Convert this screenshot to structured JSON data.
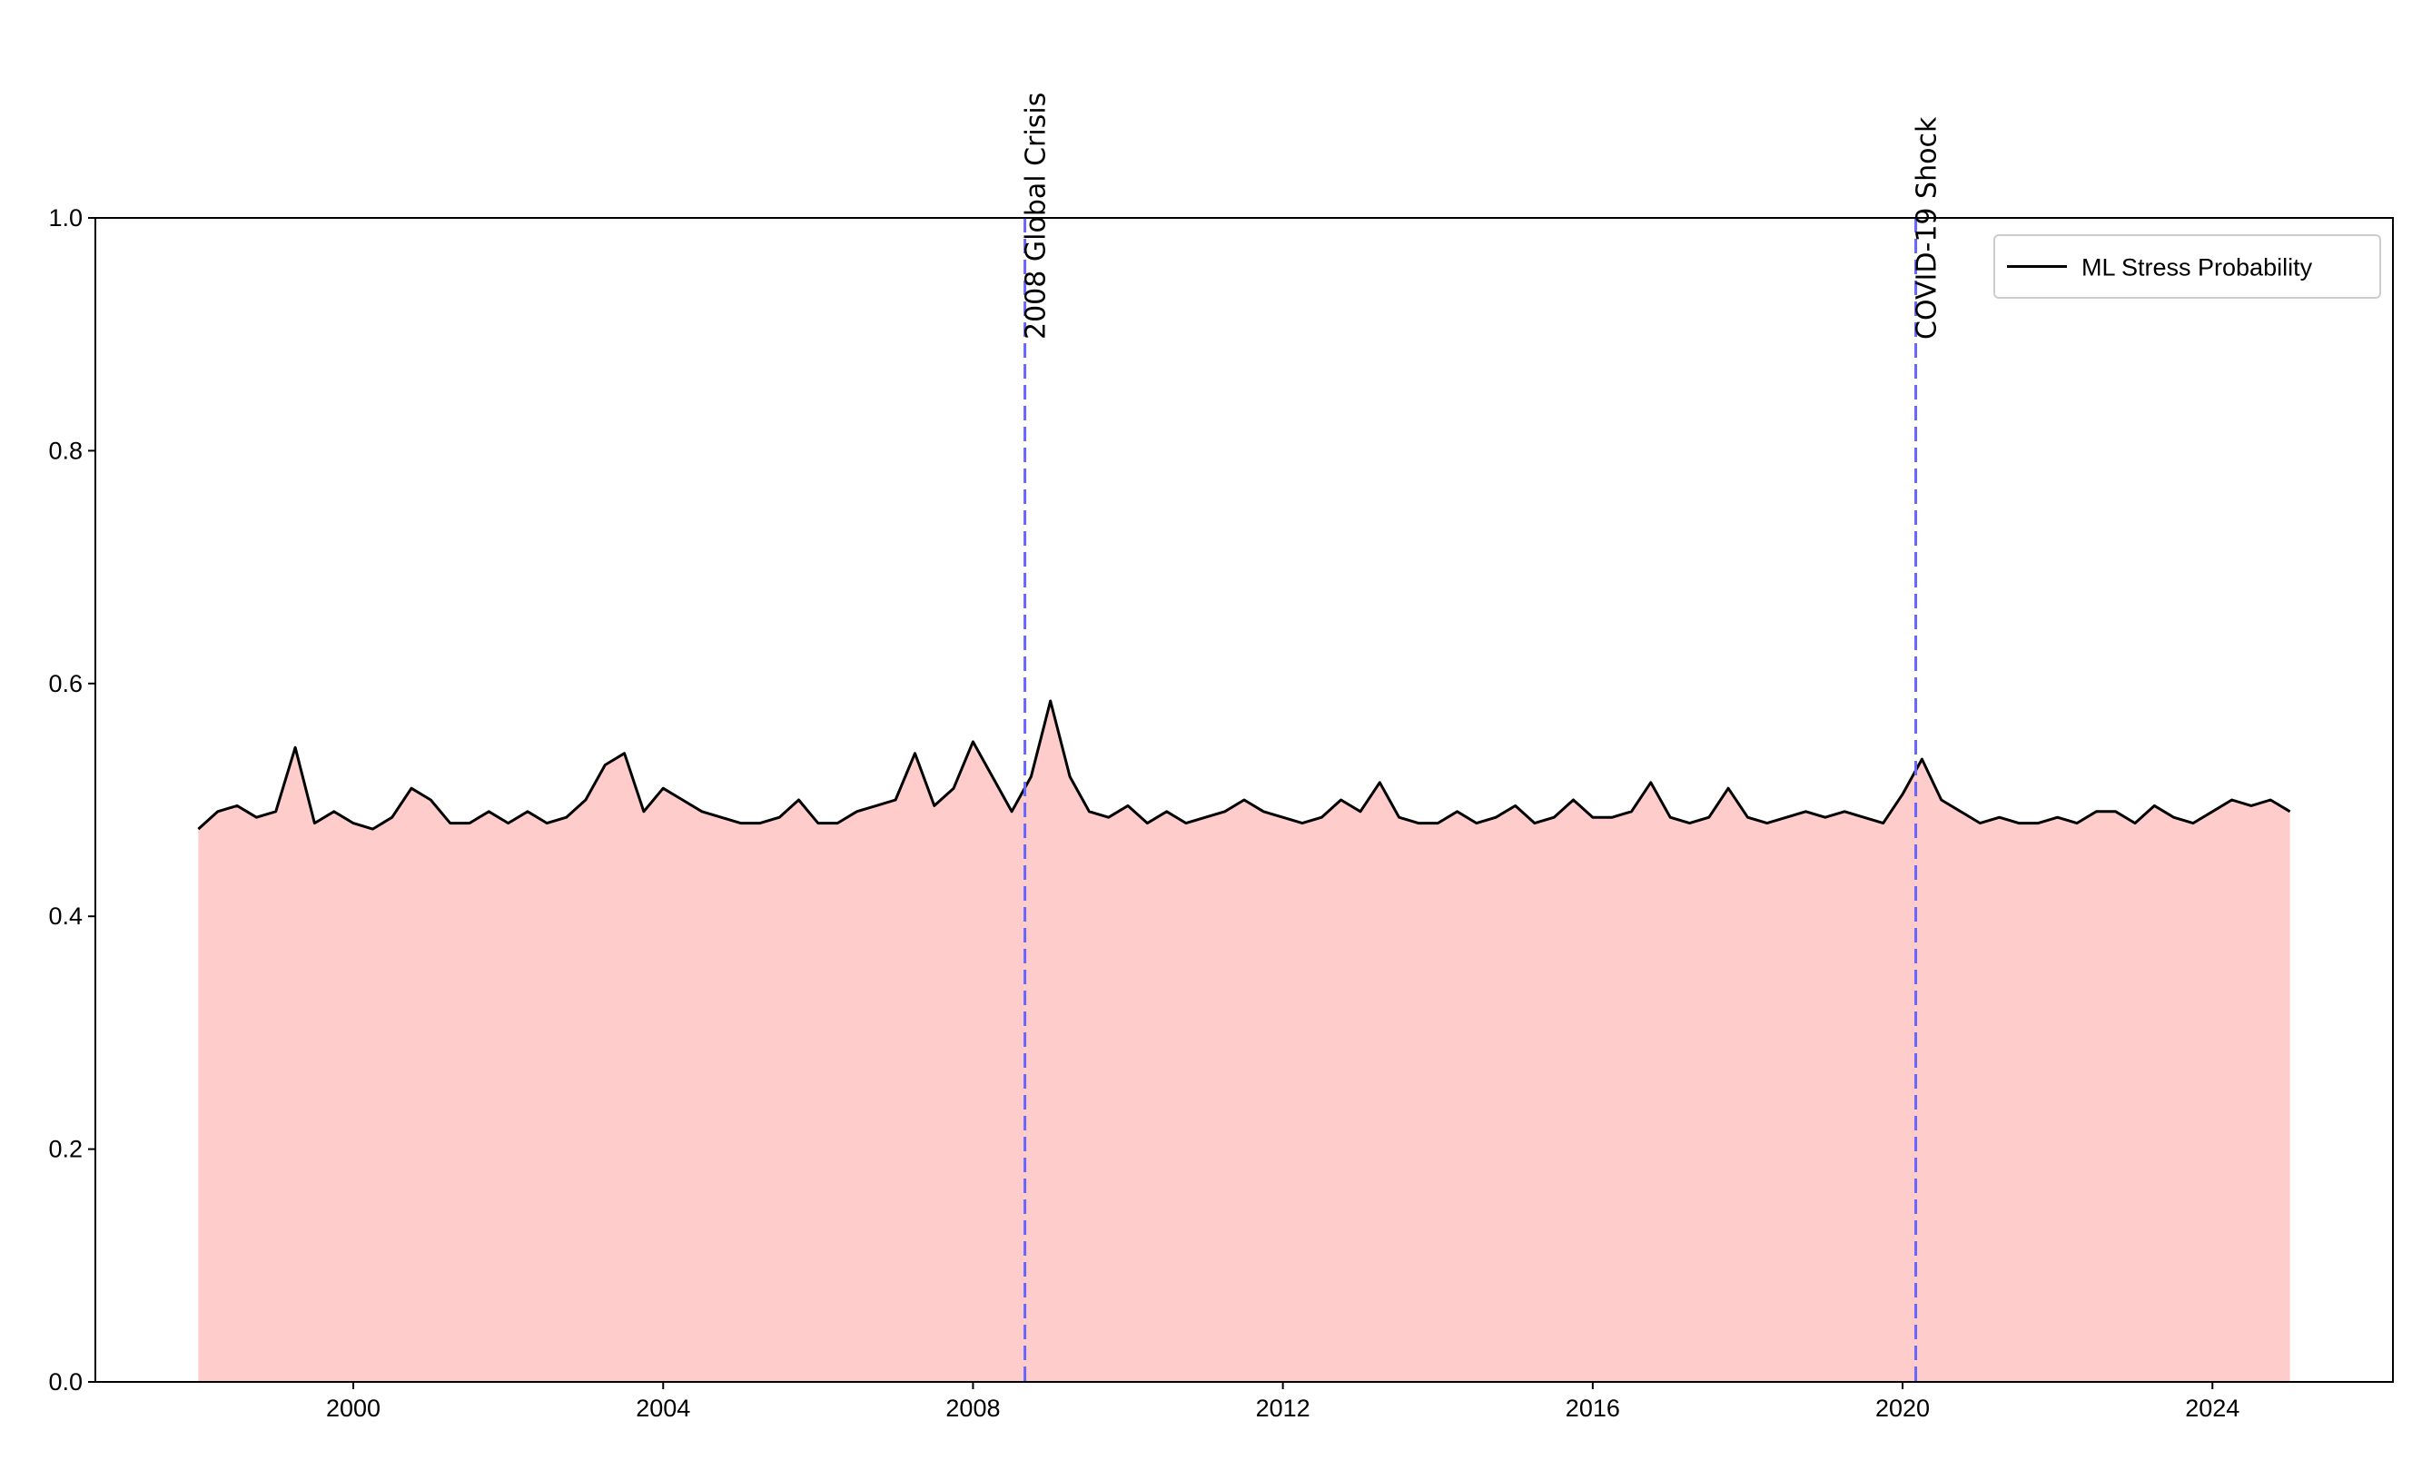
{
  "chart_data": {
    "type": "line",
    "x": [
      1998.0,
      1998.25,
      1998.5,
      1998.75,
      1999.0,
      1999.25,
      1999.5,
      1999.75,
      2000.0,
      2000.25,
      2000.5,
      2000.75,
      2001.0,
      2001.25,
      2001.5,
      2001.75,
      2002.0,
      2002.25,
      2002.5,
      2002.75,
      2003.0,
      2003.25,
      2003.5,
      2003.75,
      2004.0,
      2004.25,
      2004.5,
      2004.75,
      2005.0,
      2005.25,
      2005.5,
      2005.75,
      2006.0,
      2006.25,
      2006.5,
      2006.75,
      2007.0,
      2007.25,
      2007.5,
      2007.75,
      2008.0,
      2008.25,
      2008.5,
      2008.75,
      2009.0,
      2009.25,
      2009.5,
      2009.75,
      2010.0,
      2010.25,
      2010.5,
      2010.75,
      2011.0,
      2011.25,
      2011.5,
      2011.75,
      2012.0,
      2012.25,
      2012.5,
      2012.75,
      2013.0,
      2013.25,
      2013.5,
      2013.75,
      2014.0,
      2014.25,
      2014.5,
      2014.75,
      2015.0,
      2015.25,
      2015.5,
      2015.75,
      2016.0,
      2016.25,
      2016.5,
      2016.75,
      2017.0,
      2017.25,
      2017.5,
      2017.75,
      2018.0,
      2018.25,
      2018.5,
      2018.75,
      2019.0,
      2019.25,
      2019.5,
      2019.75,
      2020.0,
      2020.25,
      2020.5,
      2020.75,
      2021.0,
      2021.25,
      2021.5,
      2021.75,
      2022.0,
      2022.25,
      2022.5,
      2022.75,
      2023.0,
      2023.25,
      2023.5,
      2023.75,
      2024.0,
      2024.25,
      2024.5,
      2024.75,
      2025.0
    ],
    "series": [
      {
        "name": "ML Stress Probability",
        "color": "#000000",
        "fill_color": "#ffcccc",
        "values": [
          0.475,
          0.49,
          0.495,
          0.485,
          0.49,
          0.545,
          0.48,
          0.49,
          0.48,
          0.475,
          0.485,
          0.51,
          0.5,
          0.48,
          0.48,
          0.49,
          0.48,
          0.49,
          0.48,
          0.485,
          0.5,
          0.53,
          0.54,
          0.49,
          0.51,
          0.5,
          0.49,
          0.485,
          0.48,
          0.48,
          0.485,
          0.5,
          0.48,
          0.48,
          0.49,
          0.495,
          0.5,
          0.54,
          0.495,
          0.51,
          0.55,
          0.52,
          0.49,
          0.52,
          0.585,
          0.52,
          0.49,
          0.485,
          0.495,
          0.48,
          0.49,
          0.48,
          0.485,
          0.49,
          0.5,
          0.49,
          0.485,
          0.48,
          0.485,
          0.5,
          0.49,
          0.515,
          0.485,
          0.48,
          0.48,
          0.49,
          0.48,
          0.485,
          0.495,
          0.48,
          0.485,
          0.5,
          0.485,
          0.485,
          0.49,
          0.515,
          0.485,
          0.48,
          0.485,
          0.51,
          0.485,
          0.48,
          0.485,
          0.49,
          0.485,
          0.49,
          0.485,
          0.48,
          0.505,
          0.535,
          0.5,
          0.49,
          0.48,
          0.485,
          0.48,
          0.48,
          0.485,
          0.48,
          0.49,
          0.49,
          0.48,
          0.495,
          0.485,
          0.48,
          0.49,
          0.5,
          0.495,
          0.5,
          0.49
        ]
      }
    ],
    "events": [
      {
        "x": 2008.67,
        "label": "2008 Global Crisis",
        "color": "#6666ff"
      },
      {
        "x": 2020.17,
        "label": "COVID-19 Shock",
        "color": "#6666ff"
      }
    ],
    "xlim": [
      1996.67,
      2026.33
    ],
    "xticks": [
      2000,
      2004,
      2008,
      2012,
      2016,
      2020,
      2024
    ],
    "ylim": [
      0,
      1
    ],
    "yticks": [
      {
        "value": 0,
        "label": "0.0"
      },
      0.2,
      0.4,
      0.6,
      0.8,
      {
        "value": 1,
        "label": "1.0"
      }
    ],
    "legend": "upper right"
  }
}
